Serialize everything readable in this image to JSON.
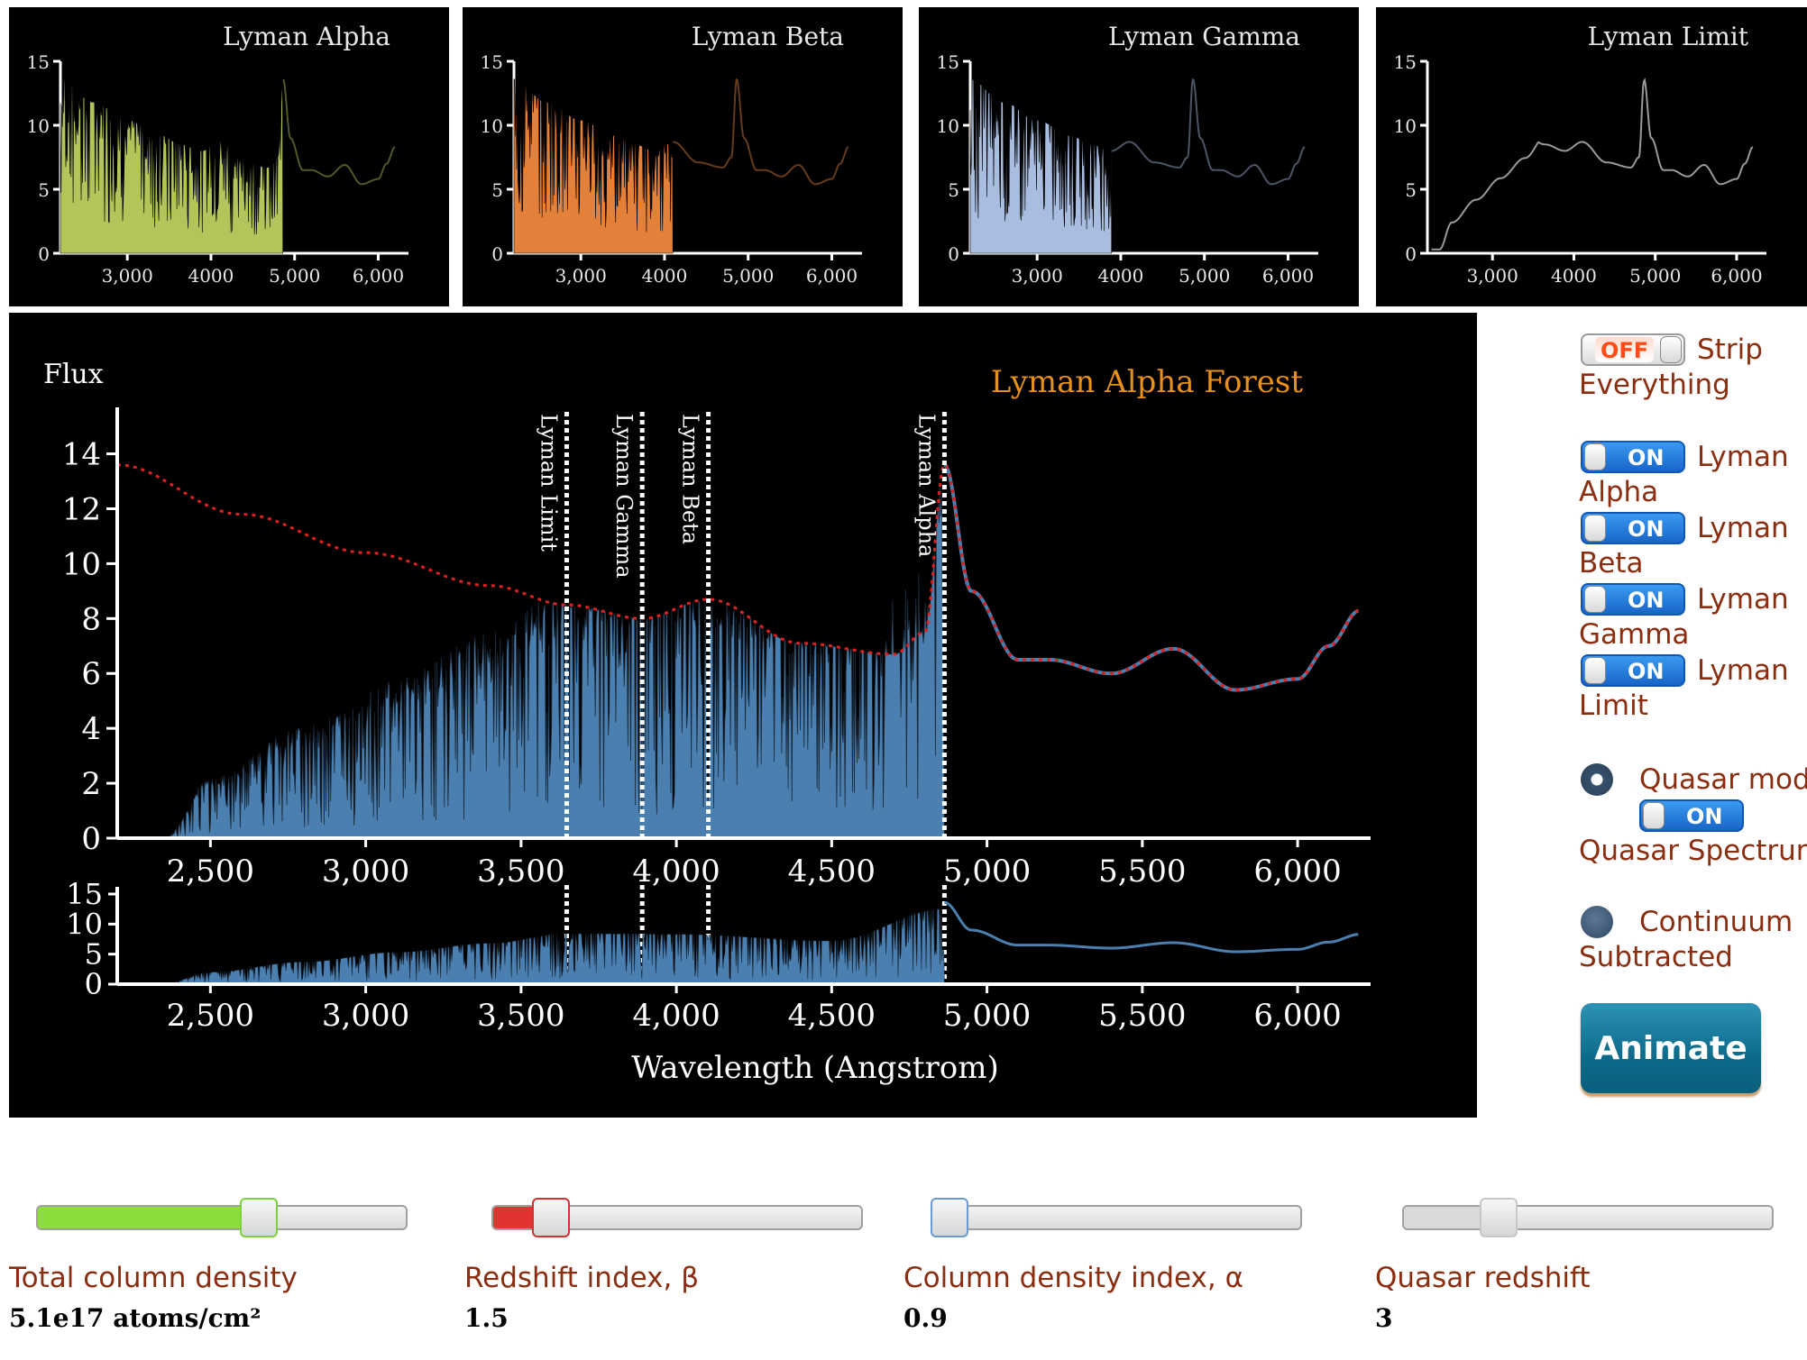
{
  "mini_charts": [
    {
      "title": "Lyman Alpha",
      "color": "#b5c45a",
      "cutoff": 4860,
      "y_ticks": [
        "15",
        "10",
        "5",
        "0"
      ],
      "x_ticks": [
        "3,000",
        "4000",
        "5,000",
        "6,000"
      ]
    },
    {
      "title": "Lyman Beta",
      "color": "#e3813a",
      "cutoff": 4100,
      "y_ticks": [
        "15",
        "10",
        "5",
        "0"
      ],
      "x_ticks": [
        "3,000",
        "4000",
        "5,000",
        "6,000"
      ]
    },
    {
      "title": "Lyman Gamma",
      "color": "#a9bde0",
      "cutoff": 3890,
      "y_ticks": [
        "15",
        "10",
        "5",
        "0"
      ],
      "x_ticks": [
        "3,000",
        "4000",
        "5,000",
        "6,000"
      ]
    },
    {
      "title": "Lyman Limit",
      "color": "#555555",
      "cutoff": 0,
      "y_ticks": [
        "15",
        "10",
        "5",
        "0"
      ],
      "x_ticks": [
        "3,000",
        "4000",
        "5,000",
        "6,000"
      ]
    }
  ],
  "main_chart": {
    "flux_label": "Flux",
    "title": "Lyman Alpha Forest",
    "xlabel": "Wavelength (Angstrom)",
    "y_ticks": [
      "14",
      "12",
      "10",
      "8",
      "6",
      "4",
      "2",
      "0"
    ],
    "x_ticks": [
      "2,500",
      "3,000",
      "3,500",
      "4,000",
      "4,500",
      "5,000",
      "5,500",
      "6,000"
    ],
    "small_y_ticks": [
      "15",
      "10",
      "5",
      "0"
    ],
    "lines": [
      {
        "label": "Lyman Limit",
        "x": 3647
      },
      {
        "label": "Lyman Gamma",
        "x": 3890
      },
      {
        "label": "Lyman Beta",
        "x": 4103
      },
      {
        "label": "Lyman Alpha",
        "x": 4863
      }
    ]
  },
  "chart_data": [
    {
      "type": "area",
      "title": "Lyman Alpha",
      "xlim": [
        2200,
        6200
      ],
      "ylim": [
        0,
        15
      ],
      "x_ticks": [
        "3,000",
        "4000",
        "5,000",
        "6,000"
      ],
      "y_ticks": [
        "15",
        "10",
        "5",
        "0"
      ],
      "absorption_below": 4860
    },
    {
      "type": "area",
      "title": "Lyman Beta",
      "xlim": [
        2200,
        6200
      ],
      "ylim": [
        0,
        15
      ],
      "x_ticks": [
        "3,000",
        "4000",
        "5,000",
        "6,000"
      ],
      "y_ticks": [
        "15",
        "10",
        "5",
        "0"
      ],
      "absorption_below": 4100
    },
    {
      "type": "area",
      "title": "Lyman Gamma",
      "xlim": [
        2200,
        6200
      ],
      "ylim": [
        0,
        15
      ],
      "x_ticks": [
        "3,000",
        "4000",
        "5,000",
        "6,000"
      ],
      "y_ticks": [
        "15",
        "10",
        "5",
        "0"
      ],
      "absorption_below": 3890
    },
    {
      "type": "line",
      "title": "Lyman Limit",
      "xlim": [
        2200,
        6200
      ],
      "ylim": [
        0,
        15
      ],
      "x_ticks": [
        "3,000",
        "4000",
        "5,000",
        "6,000"
      ],
      "y_ticks": [
        "15",
        "10",
        "5",
        "0"
      ]
    },
    {
      "type": "area",
      "title": "Lyman Alpha Forest",
      "ylabel": "Flux",
      "xlabel": "Wavelength (Angstrom)",
      "xlim": [
        2200,
        6200
      ],
      "ylim": [
        0,
        15
      ],
      "quasar_model": {
        "x": [
          2200,
          2600,
          3000,
          3400,
          3647,
          3890,
          4103,
          4400,
          4700,
          4800,
          4863,
          4950,
          5100,
          5200,
          5400,
          5600,
          5800,
          6000,
          6100,
          6200
        ],
        "y": [
          13.6,
          11.8,
          10.4,
          9.2,
          8.5,
          8.0,
          8.7,
          7.1,
          6.7,
          7.5,
          13.6,
          9.0,
          6.5,
          6.5,
          6.0,
          6.9,
          5.4,
          5.8,
          7.0,
          8.3
        ]
      },
      "absorbed_envelope": {
        "x": [
          2200,
          2350,
          2500,
          2800,
          3100,
          3400,
          3647,
          4000,
          4500,
          4863
        ],
        "y": [
          0,
          0,
          2.0,
          3.7,
          5.3,
          6.8,
          8.4,
          8.3,
          7.2,
          12.5
        ]
      },
      "reference_lines": [
        {
          "label": "Lyman Limit",
          "x": 3647
        },
        {
          "label": "Lyman Gamma",
          "x": 3890
        },
        {
          "label": "Lyman Beta",
          "x": 4103
        },
        {
          "label": "Lyman Alpha",
          "x": 4863
        }
      ]
    }
  ],
  "controls": {
    "strip": {
      "state": "OFF",
      "label_a": "Strip",
      "label_b": "Everything"
    },
    "toggles": [
      {
        "state": "ON",
        "label_a": "Lyman",
        "label_b": "Alpha"
      },
      {
        "state": "ON",
        "label_a": "Lyman",
        "label_b": "Beta"
      },
      {
        "state": "ON",
        "label_a": "Lyman",
        "label_b": "Gamma"
      },
      {
        "state": "ON",
        "label_a": "Lyman",
        "label_b": "Limit"
      }
    ],
    "quasar_model_label": "Quasar model",
    "quasar_spectrum": {
      "state": "ON",
      "label": "Quasar Spectrum"
    },
    "continuum_label_a": "Continuum",
    "continuum_label_b": "Subtracted",
    "animate_label": "Animate"
  },
  "sliders": [
    {
      "label": "Total column density",
      "value": "5.1e17 atoms/cm²",
      "fill_color": "#8cdc3a",
      "handle_color": "#7ad13a",
      "position": 0.6
    },
    {
      "label": "Redshift index, β",
      "value": "1.5",
      "fill_color": "#e23232",
      "handle_color": "#d83030",
      "position": 0.16
    },
    {
      "label": "Column density index, α",
      "value": "0.9",
      "fill_color": "#9ec2ec",
      "handle_color": "#6a9ad0",
      "position": 0.05
    },
    {
      "label": "Quasar redshift",
      "value": "3",
      "fill_color": "#d9d9d9",
      "handle_color": "#c8c8c8",
      "position": 0.26
    }
  ],
  "colors": {
    "spectrum": "#4a7fb0",
    "model": "#e02020",
    "panel_bg": "#000000",
    "label": "#8b2e10",
    "title": "#e8901a"
  }
}
